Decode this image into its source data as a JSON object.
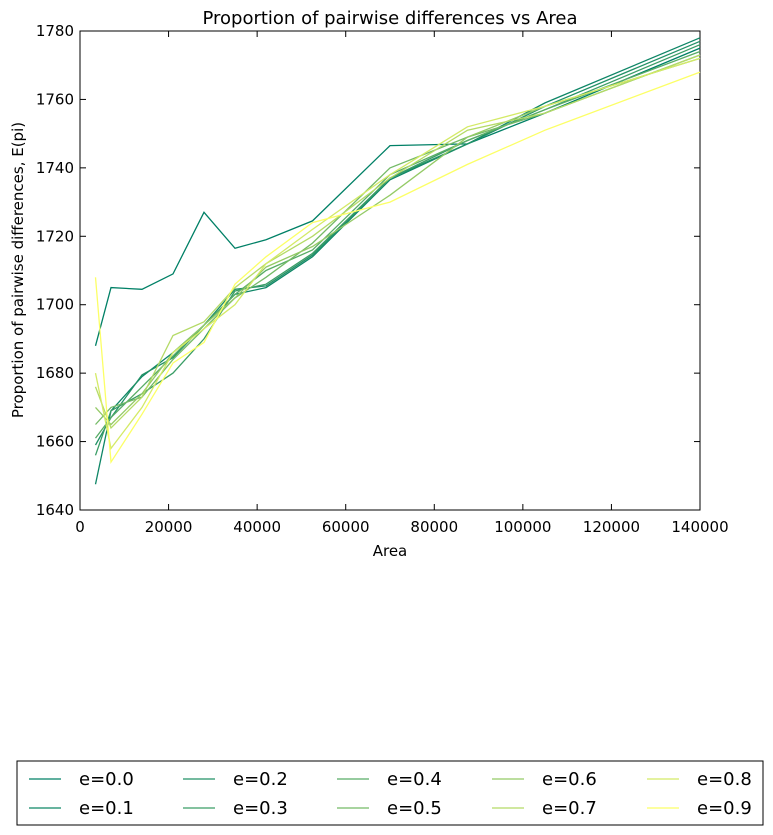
{
  "chart_data": {
    "type": "line",
    "title": "Proportion of pairwise differences vs Area",
    "xlabel": "Area",
    "ylabel": "Proportion of pairwise differences, E(pi)",
    "xlim": [
      0,
      140000
    ],
    "ylim": [
      1640,
      1780
    ],
    "xticks": [
      0,
      20000,
      40000,
      60000,
      80000,
      100000,
      120000,
      140000
    ],
    "yticks": [
      1640,
      1660,
      1680,
      1700,
      1720,
      1740,
      1760,
      1780
    ],
    "grid": false,
    "legend_position": "bottom",
    "legend_columns": 5,
    "series": [
      {
        "name": "e=0.0",
        "color": "#008066",
        "x": [
          3500,
          7000,
          14000,
          21000,
          28000,
          35000,
          42000,
          52500,
          70000,
          87500,
          105000,
          140000
        ],
        "y": [
          1688,
          1705,
          1704.5,
          1709,
          1727,
          1716.5,
          1719,
          1724.5,
          1746.5,
          1747,
          1756,
          1775
        ]
      },
      {
        "name": "e=0.1",
        "color": "#0e8666",
        "x": [
          3500,
          7000,
          14000,
          21000,
          28000,
          35000,
          42000,
          52500,
          70000,
          87500,
          105000,
          140000
        ],
        "y": [
          1647.5,
          1669,
          1679,
          1686,
          1694,
          1703,
          1705,
          1714,
          1736.5,
          1747,
          1759,
          1778
        ]
      },
      {
        "name": "e=0.2",
        "color": "#229166",
        "x": [
          3500,
          7000,
          14000,
          21000,
          28000,
          35000,
          42000,
          52500,
          70000,
          87500,
          105000,
          140000
        ],
        "y": [
          1659,
          1667,
          1679.5,
          1684.5,
          1694,
          1704.5,
          1705.5,
          1714.5,
          1737,
          1747,
          1758,
          1777
        ]
      },
      {
        "name": "e=0.3",
        "color": "#3a9d66",
        "x": [
          3500,
          7000,
          14000,
          21000,
          28000,
          35000,
          42000,
          52500,
          70000,
          87500,
          105000,
          140000
        ],
        "y": [
          1656,
          1669,
          1674,
          1680,
          1690,
          1704,
          1706,
          1715,
          1737,
          1748,
          1757,
          1776
        ]
      },
      {
        "name": "e=0.4",
        "color": "#58ac66",
        "x": [
          3500,
          7000,
          14000,
          21000,
          28000,
          35000,
          42000,
          52500,
          70000,
          87500,
          105000,
          140000
        ],
        "y": [
          1661,
          1667,
          1676,
          1685,
          1694,
          1703,
          1710,
          1716,
          1738,
          1748,
          1757,
          1774
        ]
      },
      {
        "name": "e=0.5",
        "color": "#74ba66",
        "x": [
          3500,
          7000,
          14000,
          21000,
          28000,
          35000,
          42000,
          52500,
          70000,
          87500,
          105000,
          140000
        ],
        "y": [
          1665,
          1670,
          1673,
          1684,
          1693,
          1702,
          1708,
          1718,
          1740,
          1749,
          1756,
          1773
        ]
      },
      {
        "name": "e=0.6",
        "color": "#94ca66",
        "x": [
          3500,
          7000,
          14000,
          21000,
          28000,
          35000,
          42000,
          52500,
          70000,
          87500,
          105000,
          140000
        ],
        "y": [
          1670,
          1665,
          1674,
          1686,
          1694,
          1702,
          1711,
          1717,
          1732,
          1749,
          1758,
          1772
        ]
      },
      {
        "name": "e=0.7",
        "color": "#b4da66",
        "x": [
          3500,
          7000,
          14000,
          21000,
          28000,
          35000,
          42000,
          52500,
          70000,
          87500,
          105000,
          140000
        ],
        "y": [
          1676,
          1664,
          1673,
          1691,
          1695,
          1705,
          1712,
          1720,
          1737,
          1751,
          1756,
          1773
        ]
      },
      {
        "name": "e=0.8",
        "color": "#d4ea66",
        "x": [
          3500,
          7000,
          14000,
          21000,
          28000,
          35000,
          42000,
          52500,
          70000,
          87500,
          105000,
          140000
        ],
        "y": [
          1680,
          1658,
          1670,
          1686,
          1693,
          1700,
          1712,
          1722,
          1738,
          1752,
          1758,
          1772
        ]
      },
      {
        "name": "e=0.9",
        "color": "#fcff66",
        "x": [
          3500,
          7000,
          14000,
          21000,
          28000,
          35000,
          42000,
          52500,
          70000,
          87500,
          105000,
          140000
        ],
        "y": [
          1708,
          1654,
          1668,
          1683,
          1689,
          1706,
          1714,
          1724,
          1730,
          1741,
          1751,
          1768
        ]
      }
    ]
  }
}
